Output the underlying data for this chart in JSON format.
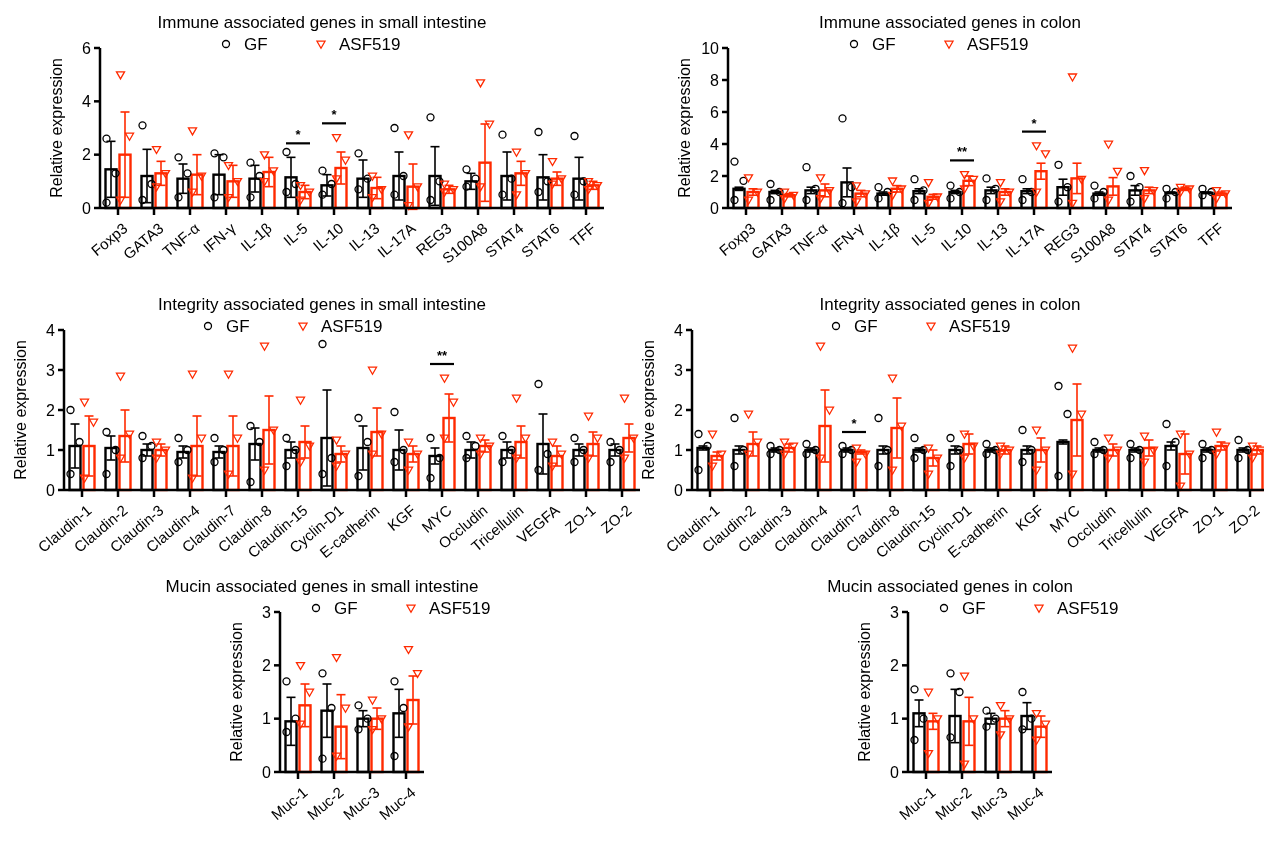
{
  "chart_data": [
    {
      "type": "bar",
      "title": "Immune associated genes in small intestine",
      "ylabel": "Relative expression",
      "legend": "top",
      "categories": [
        "Foxp3",
        "GATA3",
        "TNF-α",
        "IFN-γ",
        "IL-1β",
        "IL-5",
        "IL-10",
        "IL-13",
        "IL-17A",
        "REG3",
        "S100A8",
        "STAT4",
        "STAT6",
        "TFF"
      ],
      "ylim": [
        0,
        6
      ],
      "yticks": [
        0,
        2,
        4,
        6
      ],
      "annotations": [
        {
          "text": "*",
          "x": "IL-5",
          "y": 1.9
        },
        {
          "text": "*",
          "x": "IL-10",
          "y": 2.65
        }
      ],
      "series": [
        {
          "color": "#000000",
          "values": [
            1.45,
            1.2,
            1.1,
            1.25,
            1.1,
            1.15,
            0.85,
            1.1,
            1.2,
            1.2,
            1.0,
            1.2,
            1.15,
            1.1
          ],
          "errors": [
            1.05,
            1.0,
            0.55,
            0.75,
            0.5,
            0.75,
            0.4,
            0.7,
            0.9,
            1.1,
            0.3,
            0.9,
            0.85,
            0.8
          ]
        },
        {
          "color": "#ff2a00",
          "values": [
            2.0,
            1.3,
            1.25,
            1.0,
            1.35,
            0.6,
            1.5,
            0.75,
            0.8,
            0.7,
            1.7,
            1.3,
            1.1,
            0.85
          ],
          "errors": [
            1.6,
            0.45,
            0.75,
            0.6,
            0.55,
            0.25,
            0.6,
            0.4,
            0.85,
            0.15,
            1.45,
            0.45,
            0.25,
            0.15
          ]
        },
        {
          "type": "scatter",
          "name": "GF",
          "color": "#000000",
          "marker": "circle",
          "x": [
            "Foxp3",
            "Foxp3",
            "Foxp3",
            "GATA3",
            "GATA3",
            "GATA3",
            "TNF-α",
            "TNF-α",
            "TNF-α",
            "IFN-γ",
            "IFN-γ",
            "IFN-γ",
            "IL-1β",
            "IL-1β",
            "IL-1β",
            "IL-5",
            "IL-5",
            "IL-5",
            "IL-10",
            "IL-10",
            "IL-10",
            "IL-13",
            "IL-13",
            "IL-13",
            "IL-17A",
            "IL-17A",
            "IL-17A",
            "REG3",
            "REG3",
            "REG3",
            "S100A8",
            "S100A8",
            "S100A8",
            "STAT4",
            "STAT4",
            "STAT4",
            "STAT6",
            "STAT6",
            "STAT6",
            "TFF",
            "TFF",
            "TFF"
          ],
          "values": [
            2.6,
            1.3,
            0.2,
            3.1,
            0.9,
            0.3,
            1.9,
            1.3,
            0.4,
            2.05,
            1.9,
            0.4,
            1.7,
            1.2,
            0.4,
            2.1,
            0.9,
            0.6,
            1.4,
            0.9,
            0.5,
            2.05,
            1.1,
            0.7,
            3.0,
            1.2,
            0.5,
            3.4,
            1.0,
            0.3,
            1.45,
            1.1,
            0.8,
            2.75,
            1.1,
            0.5,
            2.85,
            1.0,
            0.6,
            2.7,
            1.0,
            0.5
          ]
        },
        {
          "type": "scatter",
          "name": "ASF519",
          "color": "#ff2a00",
          "marker": "triangle",
          "x": [
            "Foxp3",
            "Foxp3",
            "Foxp3",
            "GATA3",
            "GATA3",
            "GATA3",
            "TNF-α",
            "TNF-α",
            "TNF-α",
            "IFN-γ",
            "IFN-γ",
            "IFN-γ",
            "IL-1β",
            "IL-1β",
            "IL-1β",
            "IL-5",
            "IL-5",
            "IL-5",
            "IL-10",
            "IL-10",
            "IL-10",
            "IL-13",
            "IL-13",
            "IL-13",
            "IL-17A",
            "IL-17A",
            "IL-17A",
            "REG3",
            "REG3",
            "REG3",
            "S100A8",
            "S100A8",
            "S100A8",
            "STAT4",
            "STAT4",
            "STAT4",
            "STAT6",
            "STAT6",
            "STAT6",
            "TFF",
            "TFF",
            "TFF"
          ],
          "values": [
            5.0,
            2.7,
            0.3,
            2.2,
            1.3,
            0.8,
            2.9,
            1.2,
            0.6,
            1.6,
            1.0,
            0.4,
            2.0,
            1.4,
            1.0,
            0.85,
            0.6,
            0.3,
            2.65,
            1.8,
            1.1,
            1.2,
            0.7,
            0.4,
            2.75,
            0.8,
            0.1,
            0.9,
            0.7,
            0.6,
            4.7,
            3.15,
            0.8,
            2.1,
            1.3,
            0.5,
            1.75,
            1.1,
            0.9,
            1.0,
            0.85,
            0.7
          ]
        }
      ]
    },
    {
      "type": "bar",
      "title": "Immune associated genes in colon",
      "ylabel": "Relative expression",
      "legend": "top",
      "categories": [
        "Foxp3",
        "GATA3",
        "TNF-α",
        "IFN-γ",
        "IL-1β",
        "IL-5",
        "IL-10",
        "IL-13",
        "IL-17A",
        "REG3",
        "S100A8",
        "STAT4",
        "STAT6",
        "TFF"
      ],
      "ylim": [
        0,
        10
      ],
      "yticks": [
        0,
        2,
        4,
        6,
        8,
        10
      ],
      "annotations": [
        {
          "text": "**",
          "x": "IL-10",
          "y": 2.1
        },
        {
          "text": "*",
          "x": "IL-17A",
          "y": 3.9
        }
      ],
      "series": [
        {
          "color": "#000000",
          "values": [
            1.2,
            1.0,
            1.1,
            1.6,
            0.9,
            1.05,
            1.0,
            1.1,
            1.05,
            1.3,
            0.9,
            1.1,
            0.95,
            0.95
          ],
          "errors": [
            0.1,
            0.1,
            0.2,
            0.9,
            0.1,
            0.15,
            0.1,
            0.2,
            0.15,
            0.5,
            0.1,
            0.3,
            0.05,
            0.05
          ]
        },
        {
          "color": "#ff2a00",
          "values": [
            1.0,
            0.8,
            1.1,
            0.9,
            1.2,
            0.7,
            1.7,
            1.0,
            2.3,
            1.85,
            1.35,
            1.1,
            1.2,
            0.9
          ],
          "errors": [
            0.2,
            0.1,
            0.4,
            0.2,
            0.2,
            0.15,
            0.3,
            0.2,
            0.5,
            0.95,
            0.55,
            0.2,
            0.1,
            0.1
          ]
        },
        {
          "type": "scatter",
          "name": "GF",
          "color": "#000000",
          "marker": "circle",
          "x": [
            "Foxp3",
            "Foxp3",
            "Foxp3",
            "GATA3",
            "GATA3",
            "GATA3",
            "TNF-α",
            "TNF-α",
            "TNF-α",
            "IFN-γ",
            "IFN-γ",
            "IFN-γ",
            "IL-1β",
            "IL-1β",
            "IL-1β",
            "IL-5",
            "IL-5",
            "IL-5",
            "IL-10",
            "IL-10",
            "IL-10",
            "IL-13",
            "IL-13",
            "IL-13",
            "IL-17A",
            "IL-17A",
            "IL-17A",
            "REG3",
            "REG3",
            "REG3",
            "S100A8",
            "S100A8",
            "S100A8",
            "STAT4",
            "STAT4",
            "STAT4",
            "STAT6",
            "STAT6",
            "STAT6",
            "TFF",
            "TFF",
            "TFF"
          ],
          "values": [
            2.9,
            1.7,
            0.5,
            1.5,
            1.0,
            0.5,
            2.55,
            1.2,
            0.5,
            5.6,
            1.3,
            0.3,
            1.3,
            1.0,
            0.6,
            1.8,
            1.1,
            0.5,
            1.4,
            1.0,
            0.6,
            1.85,
            1.2,
            0.5,
            1.8,
            1.0,
            0.5,
            2.7,
            1.3,
            0.4,
            1.4,
            1.0,
            0.6,
            2.0,
            1.3,
            0.4,
            1.2,
            1.0,
            0.6,
            1.2,
            1.0,
            0.8
          ]
        },
        {
          "type": "scatter",
          "name": "ASF519",
          "color": "#ff2a00",
          "marker": "triangle",
          "x": [
            "Foxp3",
            "Foxp3",
            "Foxp3",
            "GATA3",
            "GATA3",
            "GATA3",
            "TNF-α",
            "TNF-α",
            "TNF-α",
            "IFN-γ",
            "IFN-γ",
            "IFN-γ",
            "IL-1β",
            "IL-1β",
            "IL-1β",
            "IL-5",
            "IL-5",
            "IL-5",
            "IL-10",
            "IL-10",
            "IL-10",
            "IL-13",
            "IL-13",
            "IL-13",
            "IL-17A",
            "IL-17A",
            "IL-17A",
            "REG3",
            "REG3",
            "REG3",
            "S100A8",
            "S100A8",
            "S100A8",
            "STAT4",
            "STAT4",
            "STAT4",
            "STAT6",
            "STAT6",
            "STAT6",
            "TFF",
            "TFF",
            "TFF"
          ],
          "values": [
            1.9,
            1.0,
            0.5,
            1.0,
            0.8,
            0.6,
            1.9,
            1.1,
            0.6,
            1.4,
            0.9,
            0.4,
            1.7,
            1.2,
            0.8,
            1.6,
            0.7,
            0.3,
            2.1,
            1.8,
            1.2,
            1.6,
            1.0,
            0.4,
            3.9,
            3.4,
            1.0,
            8.2,
            1.8,
            0.3,
            4.0,
            2.3,
            0.5,
            2.35,
            1.1,
            0.6,
            1.3,
            1.2,
            1.0,
            1.1,
            0.9,
            0.6
          ]
        }
      ]
    },
    {
      "type": "bar",
      "title": "Integrity associated genes in small intestine",
      "ylabel": "Relative expression",
      "legend": "top",
      "categories": [
        "Claudin-1",
        "Claudin-2",
        "Claudin-3",
        "Claudin-4",
        "Claudin-7",
        "Claudin-8",
        "Claudin-15",
        "Cyclin-D1",
        "E-cadherin",
        "KGF",
        "MYC",
        "Occludin",
        "Tricellulin",
        "VEGFA",
        "ZO-1",
        "ZO-2"
      ],
      "ylim": [
        0,
        4
      ],
      "yticks": [
        0,
        1,
        2,
        3,
        4
      ],
      "annotations": [
        {
          "text": "**",
          "x": "MYC",
          "y": 2.8
        }
      ],
      "series": [
        {
          "color": "#000000",
          "values": [
            1.1,
            1.05,
            1.0,
            0.95,
            0.95,
            1.15,
            1.0,
            1.3,
            1.05,
            1.0,
            0.85,
            1.0,
            1.0,
            1.15,
            1.0,
            1.0
          ],
          "errors": [
            0.55,
            0.3,
            0.15,
            0.15,
            0.15,
            0.4,
            0.2,
            1.2,
            0.55,
            0.5,
            0.2,
            0.2,
            0.2,
            0.75,
            0.15,
            0.15
          ]
        },
        {
          "color": "#ff2a00",
          "values": [
            1.1,
            1.35,
            1.0,
            1.1,
            1.1,
            1.5,
            1.2,
            0.9,
            1.45,
            0.9,
            1.8,
            1.1,
            1.2,
            0.85,
            1.15,
            1.3
          ],
          "errors": [
            0.75,
            0.65,
            0.15,
            0.75,
            0.75,
            0.85,
            0.4,
            0.2,
            0.6,
            0.2,
            0.6,
            0.15,
            0.4,
            0.25,
            0.3,
            0.35
          ]
        },
        {
          "type": "scatter",
          "name": "GF",
          "color": "#000000",
          "marker": "circle",
          "x": [
            "Claudin-1",
            "Claudin-1",
            "Claudin-1",
            "Claudin-2",
            "Claudin-2",
            "Claudin-2",
            "Claudin-3",
            "Claudin-3",
            "Claudin-3",
            "Claudin-4",
            "Claudin-4",
            "Claudin-4",
            "Claudin-7",
            "Claudin-7",
            "Claudin-7",
            "Claudin-8",
            "Claudin-8",
            "Claudin-8",
            "Claudin-15",
            "Claudin-15",
            "Claudin-15",
            "Cyclin-D1",
            "Cyclin-D1",
            "Cyclin-D1",
            "E-cadherin",
            "E-cadherin",
            "E-cadherin",
            "KGF",
            "KGF",
            "KGF",
            "MYC",
            "MYC",
            "MYC",
            "Occludin",
            "Occludin",
            "Occludin",
            "Tricellulin",
            "Tricellulin",
            "Tricellulin",
            "VEGFA",
            "VEGFA",
            "VEGFA",
            "ZO-1",
            "ZO-1",
            "ZO-1",
            "ZO-2",
            "ZO-2",
            "ZO-2"
          ],
          "values": [
            2.0,
            1.2,
            0.4,
            1.45,
            1.0,
            0.4,
            1.35,
            1.1,
            0.8,
            1.3,
            1.0,
            0.7,
            1.3,
            1.0,
            0.7,
            1.6,
            1.2,
            0.2,
            1.3,
            1.0,
            0.6,
            3.65,
            0.8,
            0.4,
            1.8,
            1.2,
            0.35,
            1.95,
            1.0,
            0.7,
            1.3,
            0.8,
            0.3,
            1.35,
            1.1,
            0.8,
            1.35,
            1.0,
            0.7,
            2.65,
            0.9,
            0.5,
            1.3,
            1.0,
            0.7,
            1.2,
            1.0,
            0.7
          ]
        },
        {
          "type": "scatter",
          "name": "ASF519",
          "color": "#ff2a00",
          "marker": "triangle",
          "x": [
            "Claudin-1",
            "Claudin-1",
            "Claudin-1",
            "Claudin-2",
            "Claudin-2",
            "Claudin-2",
            "Claudin-3",
            "Claudin-3",
            "Claudin-3",
            "Claudin-4",
            "Claudin-4",
            "Claudin-4",
            "Claudin-7",
            "Claudin-7",
            "Claudin-7",
            "Claudin-8",
            "Claudin-8",
            "Claudin-8",
            "Claudin-15",
            "Claudin-15",
            "Claudin-15",
            "Cyclin-D1",
            "Cyclin-D1",
            "Cyclin-D1",
            "E-cadherin",
            "E-cadherin",
            "E-cadherin",
            "KGF",
            "KGF",
            "KGF",
            "MYC",
            "MYC",
            "MYC",
            "Occludin",
            "Occludin",
            "Occludin",
            "Tricellulin",
            "Tricellulin",
            "Tricellulin",
            "VEGFA",
            "VEGFA",
            "VEGFA",
            "ZO-1",
            "ZO-1",
            "ZO-1",
            "ZO-2",
            "ZO-2",
            "ZO-2"
          ],
          "values": [
            2.2,
            1.7,
            0.3,
            2.85,
            1.4,
            0.8,
            1.2,
            1.0,
            0.8,
            2.9,
            1.3,
            0.3,
            2.9,
            1.3,
            0.4,
            3.6,
            1.5,
            0.5,
            2.25,
            1.1,
            0.7,
            1.25,
            0.9,
            0.6,
            3.0,
            1.4,
            0.9,
            1.2,
            0.9,
            0.5,
            2.8,
            2.2,
            1.3,
            1.3,
            1.1,
            0.9,
            2.3,
            1.3,
            0.8,
            1.2,
            0.9,
            0.6,
            1.85,
            1.3,
            0.8,
            2.3,
            1.3,
            0.8
          ]
        }
      ]
    },
    {
      "type": "bar",
      "title": "Integrity associated genes in colon",
      "ylabel": "Relative expression",
      "legend": "top",
      "categories": [
        "Claudin-1",
        "Claudin-2",
        "Claudin-3",
        "Claudin-4",
        "Claudin-7",
        "Claudin-8",
        "Claudin-15",
        "Cyclin-D1",
        "E-cadherin",
        "KGF",
        "MYC",
        "Occludin",
        "Tricellulin",
        "VEGFA",
        "ZO-1",
        "ZO-2"
      ],
      "ylim": [
        0,
        4
      ],
      "yticks": [
        0,
        1,
        2,
        3,
        4
      ],
      "annotations": [
        {
          "text": "*",
          "x": "Claudin-7",
          "y": 1.1
        }
      ],
      "series": [
        {
          "color": "#000000",
          "values": [
            1.05,
            1.0,
            1.0,
            1.0,
            1.0,
            1.0,
            1.0,
            1.0,
            1.0,
            1.0,
            1.2,
            1.0,
            1.0,
            1.1,
            1.0,
            1.0
          ],
          "errors": [
            0.05,
            0.1,
            0.05,
            0.05,
            0.05,
            0.1,
            0.05,
            0.1,
            0.05,
            0.1,
            0.05,
            0.05,
            0.05,
            0.1,
            0.05,
            0.05
          ]
        },
        {
          "color": "#ff2a00",
          "values": [
            0.85,
            1.15,
            1.05,
            1.6,
            0.95,
            1.55,
            0.8,
            1.15,
            1.0,
            1.0,
            1.75,
            1.0,
            1.05,
            0.9,
            1.1,
            1.0
          ],
          "errors": [
            0.1,
            0.3,
            0.1,
            0.9,
            0.05,
            0.75,
            0.2,
            0.25,
            0.1,
            0.3,
            0.9,
            0.15,
            0.2,
            0.5,
            0.1,
            0.1
          ]
        },
        {
          "type": "scatter",
          "name": "GF",
          "color": "#000000",
          "marker": "circle",
          "x": [
            "Claudin-1",
            "Claudin-1",
            "Claudin-1",
            "Claudin-2",
            "Claudin-2",
            "Claudin-2",
            "Claudin-3",
            "Claudin-3",
            "Claudin-3",
            "Claudin-4",
            "Claudin-4",
            "Claudin-4",
            "Claudin-7",
            "Claudin-7",
            "Claudin-7",
            "Claudin-8",
            "Claudin-8",
            "Claudin-8",
            "Claudin-15",
            "Claudin-15",
            "Claudin-15",
            "Cyclin-D1",
            "Cyclin-D1",
            "Cyclin-D1",
            "E-cadherin",
            "E-cadherin",
            "E-cadherin",
            "KGF",
            "KGF",
            "KGF",
            "MYC",
            "MYC",
            "MYC",
            "Occludin",
            "Occludin",
            "Occludin",
            "Tricellulin",
            "Tricellulin",
            "Tricellulin",
            "VEGFA",
            "VEGFA",
            "VEGFA",
            "ZO-1",
            "ZO-1",
            "ZO-1",
            "ZO-2",
            "ZO-2",
            "ZO-2"
          ],
          "values": [
            1.4,
            1.1,
            0.5,
            1.8,
            1.0,
            0.6,
            1.1,
            1.0,
            0.9,
            1.15,
            1.0,
            0.9,
            1.1,
            1.0,
            0.9,
            1.8,
            1.0,
            0.6,
            1.3,
            1.0,
            0.8,
            1.3,
            1.0,
            0.6,
            1.15,
            1.0,
            0.9,
            1.5,
            1.0,
            0.7,
            2.6,
            1.9,
            0.35,
            1.2,
            1.0,
            0.9,
            1.15,
            1.0,
            0.8,
            1.65,
            1.2,
            0.6,
            1.15,
            1.0,
            0.8,
            1.25,
            1.0,
            0.8
          ]
        },
        {
          "type": "scatter",
          "name": "ASF519",
          "color": "#ff2a00",
          "marker": "triangle",
          "x": [
            "Claudin-1",
            "Claudin-1",
            "Claudin-1",
            "Claudin-2",
            "Claudin-2",
            "Claudin-2",
            "Claudin-3",
            "Claudin-3",
            "Claudin-3",
            "Claudin-4",
            "Claudin-4",
            "Claudin-4",
            "Claudin-7",
            "Claudin-7",
            "Claudin-7",
            "Claudin-8",
            "Claudin-8",
            "Claudin-8",
            "Claudin-15",
            "Claudin-15",
            "Claudin-15",
            "Cyclin-D1",
            "Cyclin-D1",
            "Cyclin-D1",
            "E-cadherin",
            "E-cadherin",
            "E-cadherin",
            "KGF",
            "KGF",
            "KGF",
            "MYC",
            "MYC",
            "MYC",
            "Occludin",
            "Occludin",
            "Occludin",
            "Tricellulin",
            "Tricellulin",
            "Tricellulin",
            "VEGFA",
            "VEGFA",
            "VEGFA",
            "ZO-1",
            "ZO-1",
            "ZO-1",
            "ZO-2",
            "ZO-2",
            "ZO-2"
          ],
          "values": [
            1.4,
            0.9,
            0.6,
            1.9,
            1.2,
            0.9,
            1.2,
            1.1,
            0.9,
            3.6,
            2.0,
            0.8,
            1.05,
            0.9,
            0.7,
            2.8,
            1.6,
            0.5,
            1.05,
            0.8,
            0.4,
            1.4,
            1.1,
            0.8,
            1.1,
            1.0,
            0.9,
            1.5,
            1.0,
            0.5,
            3.55,
            1.9,
            0.4,
            1.3,
            1.0,
            0.8,
            1.35,
            1.0,
            0.7,
            1.4,
            0.9,
            0.1,
            1.45,
            1.1,
            0.9,
            1.1,
            1.0,
            0.8
          ]
        }
      ]
    },
    {
      "type": "bar",
      "title": "Mucin associated genes in small intestine",
      "ylabel": "Relative expression",
      "legend": "top",
      "categories": [
        "Muc-1",
        "Muc-2",
        "Muc-3",
        "Muc-4"
      ],
      "ylim": [
        0,
        3
      ],
      "yticks": [
        0,
        1,
        2,
        3
      ],
      "series": [
        {
          "color": "#000000",
          "values": [
            0.95,
            1.15,
            1.0,
            1.1
          ],
          "errors": [
            0.45,
            0.5,
            0.15,
            0.45
          ]
        },
        {
          "color": "#ff2a00",
          "values": [
            1.25,
            0.85,
            1.0,
            1.35
          ],
          "errors": [
            0.4,
            0.6,
            0.2,
            0.45
          ]
        },
        {
          "type": "scatter",
          "name": "GF",
          "color": "#000000",
          "marker": "circle",
          "x": [
            "Muc-1",
            "Muc-1",
            "Muc-1",
            "Muc-2",
            "Muc-2",
            "Muc-2",
            "Muc-3",
            "Muc-3",
            "Muc-3",
            "Muc-4",
            "Muc-4",
            "Muc-4"
          ],
          "values": [
            1.7,
            1.0,
            0.75,
            1.85,
            1.2,
            0.25,
            1.25,
            1.0,
            0.8,
            1.7,
            1.2,
            0.3
          ]
        },
        {
          "type": "scatter",
          "name": "ASF519",
          "color": "#ff2a00",
          "marker": "triangle",
          "x": [
            "Muc-1",
            "Muc-1",
            "Muc-1",
            "Muc-2",
            "Muc-2",
            "Muc-2",
            "Muc-3",
            "Muc-3",
            "Muc-3",
            "Muc-4",
            "Muc-4",
            "Muc-4"
          ],
          "values": [
            2.0,
            1.5,
            0.9,
            2.15,
            1.2,
            0.3,
            1.35,
            1.0,
            0.8,
            2.3,
            1.85,
            0.85
          ]
        }
      ]
    },
    {
      "type": "bar",
      "title": "Mucin associated genes in colon",
      "ylabel": "Relative expression",
      "legend": "top",
      "categories": [
        "Muc-1",
        "Muc-2",
        "Muc-3",
        "Muc-4"
      ],
      "ylim": [
        0,
        3
      ],
      "yticks": [
        0,
        1,
        2,
        3
      ],
      "series": [
        {
          "color": "#000000",
          "values": [
            1.1,
            1.05,
            1.0,
            1.05
          ],
          "errors": [
            0.25,
            0.5,
            0.1,
            0.25
          ]
        },
        {
          "color": "#ff2a00",
          "values": [
            0.95,
            0.95,
            1.0,
            0.85
          ],
          "errors": [
            0.15,
            0.45,
            0.15,
            0.2
          ]
        },
        {
          "type": "scatter",
          "name": "GF",
          "color": "#000000",
          "marker": "circle",
          "x": [
            "Muc-1",
            "Muc-1",
            "Muc-1",
            "Muc-2",
            "Muc-2",
            "Muc-2",
            "Muc-3",
            "Muc-3",
            "Muc-3",
            "Muc-4",
            "Muc-4",
            "Muc-4"
          ],
          "values": [
            1.55,
            1.0,
            0.6,
            1.85,
            1.5,
            0.65,
            1.15,
            1.0,
            0.85,
            1.5,
            1.0,
            0.8
          ]
        },
        {
          "type": "scatter",
          "name": "ASF519",
          "color": "#ff2a00",
          "marker": "triangle",
          "x": [
            "Muc-1",
            "Muc-1",
            "Muc-1",
            "Muc-2",
            "Muc-2",
            "Muc-2",
            "Muc-3",
            "Muc-3",
            "Muc-3",
            "Muc-4",
            "Muc-4",
            "Muc-4"
          ],
          "values": [
            1.5,
            1.0,
            0.35,
            1.8,
            1.0,
            0.15,
            1.25,
            1.0,
            0.7,
            1.1,
            0.9,
            0.6
          ]
        }
      ]
    }
  ]
}
